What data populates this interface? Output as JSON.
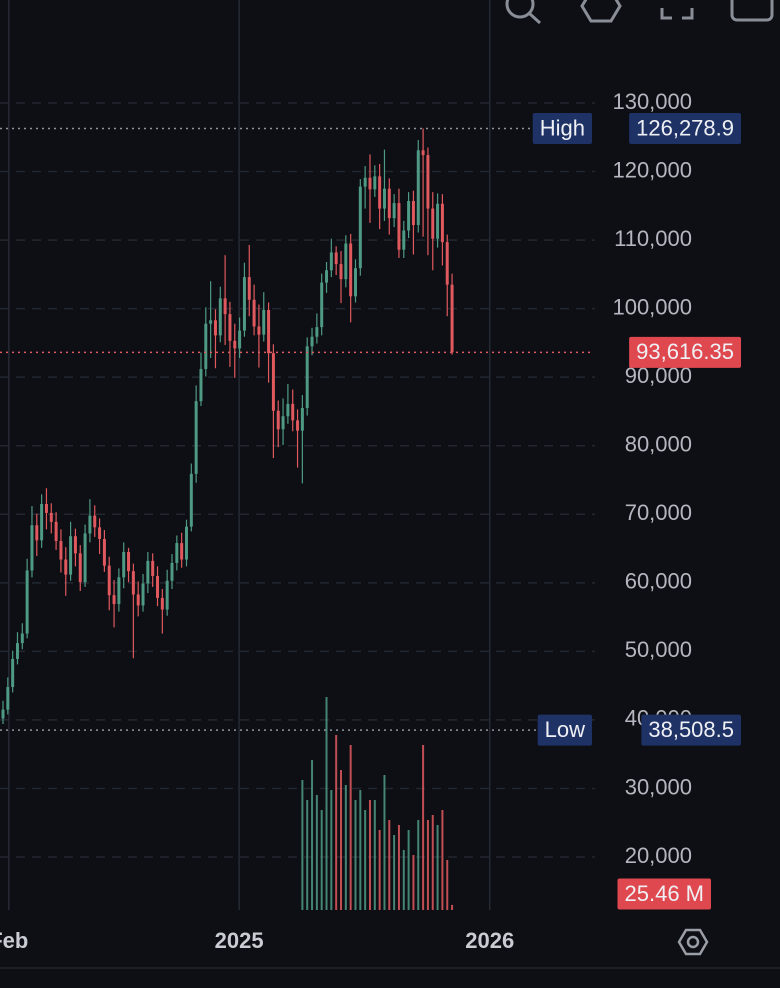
{
  "chart_data": {
    "type": "candlestick",
    "up_color": "#4f9a84",
    "down_color": "#e0595e",
    "xlim": [
      -0.62,
      122.6
    ],
    "xticks": [
      {
        "value": 1.2,
        "label": "Feb"
      },
      {
        "value": 48.9,
        "label": "2025"
      },
      {
        "value": 100.8,
        "label": "2026"
      }
    ],
    "ylim": [
      12267,
      145027
    ],
    "yticks": [
      {
        "value": 130000,
        "label": "130,000"
      },
      {
        "value": 120000,
        "label": "120,000"
      },
      {
        "value": 110000,
        "label": "110,000"
      },
      {
        "value": 100000,
        "label": "100,000"
      },
      {
        "value": 90000,
        "label": "90,000"
      },
      {
        "value": 80000,
        "label": "80,000"
      },
      {
        "value": 70000,
        "label": "70,000"
      },
      {
        "value": 60000,
        "label": "60,000"
      },
      {
        "value": 50000,
        "label": "50,000"
      },
      {
        "value": 40000,
        "label": "40,000"
      },
      {
        "value": 30000,
        "label": "30,000"
      },
      {
        "value": 20000,
        "label": "20,000"
      }
    ],
    "grid": true,
    "open": [
      40200,
      41500,
      44800,
      48900,
      51200,
      52600,
      61800,
      68400,
      66200,
      71500,
      70200,
      68900,
      66100,
      63400,
      61200,
      66800,
      64300,
      60100,
      67200,
      69800,
      68100,
      66400,
      62500,
      58200,
      56900,
      60800,
      64500,
      61700,
      58300,
      56700,
      59900,
      63200,
      61000,
      57800,
      56100,
      60300,
      62900,
      65800,
      63400,
      68200,
      75900,
      86500,
      91200,
      97800,
      98300,
      96100,
      101500,
      99200,
      95300,
      94200,
      96800,
      104600,
      101300,
      97400,
      96200,
      99800,
      93500,
      85100,
      82400,
      84300,
      86100,
      83700,
      82200,
      85500,
      94500,
      95900,
      97300,
      103800,
      105600,
      108200,
      106500,
      104300,
      109500,
      101800,
      105900,
      117800,
      119100,
      117400,
      119300,
      114600,
      117500,
      113200,
      115400,
      108600,
      111400,
      115700,
      112200,
      123100,
      122400,
      114600,
      110200,
      115300,
      109700,
      103500
    ],
    "high": [
      42800,
      46200,
      50100,
      52800,
      54100,
      63500,
      71200,
      70100,
      72900,
      73800,
      71600,
      70300,
      67800,
      65200,
      68900,
      67900,
      65500,
      68500,
      72200,
      71300,
      69400,
      67700,
      63800,
      60400,
      62100,
      65900,
      65100,
      62800,
      60200,
      61300,
      64500,
      64300,
      62400,
      59100,
      61900,
      64200,
      66900,
      67300,
      69200,
      77400,
      88800,
      93600,
      100200,
      104000,
      99900,
      103200,
      107800,
      101000,
      97800,
      98700,
      106700,
      109300,
      103500,
      100600,
      102400,
      100900,
      94800,
      86600,
      86900,
      89000,
      88200,
      85300,
      87400,
      95800,
      97200,
      99300,
      105100,
      106800,
      110200,
      109100,
      108400,
      110700,
      110900,
      107200,
      118900,
      120800,
      122500,
      120900,
      121100,
      123200,
      119000,
      116700,
      117500,
      112800,
      117000,
      117200,
      124600,
      126278.9,
      123500,
      117000,
      116800,
      116700,
      110800,
      105100
    ],
    "low": [
      39400,
      40800,
      44000,
      48100,
      50300,
      51900,
      60800,
      63900,
      65100,
      67800,
      67200,
      64800,
      61500,
      58100,
      60300,
      62400,
      58800,
      59400,
      65900,
      66700,
      64200,
      61600,
      56000,
      53500,
      55800,
      59200,
      60100,
      49000,
      55100,
      55800,
      58500,
      59400,
      56600,
      52600,
      55200,
      59100,
      61800,
      62200,
      62400,
      67500,
      74600,
      85800,
      90100,
      92800,
      91300,
      95100,
      94700,
      91500,
      89900,
      92800,
      95900,
      98900,
      96100,
      91400,
      95200,
      89200,
      78200,
      79800,
      80100,
      83200,
      82100,
      76800,
      74500,
      84400,
      93200,
      94900,
      96100,
      102300,
      104600,
      104900,
      100800,
      103100,
      98000,
      100900,
      104800,
      114600,
      112500,
      116300,
      111600,
      112800,
      110800,
      111900,
      107400,
      107400,
      110300,
      107900,
      111100,
      110500,
      107800,
      105600,
      108900,
      106300,
      98900,
      93300
    ],
    "close": [
      41500,
      44800,
      48900,
      51200,
      52600,
      61800,
      68400,
      66200,
      71500,
      70200,
      68900,
      66100,
      63400,
      61200,
      66800,
      64300,
      60100,
      67200,
      69800,
      68100,
      66400,
      62500,
      58200,
      56900,
      60800,
      64500,
      61700,
      58300,
      56700,
      59900,
      63200,
      61000,
      57800,
      56100,
      60300,
      62900,
      65800,
      63400,
      68200,
      75900,
      86500,
      91200,
      97800,
      98300,
      96100,
      101500,
      99200,
      95300,
      94200,
      96800,
      104600,
      101300,
      97400,
      96200,
      99800,
      93500,
      85100,
      82400,
      84300,
      86100,
      83700,
      82200,
      85500,
      94500,
      95900,
      97300,
      103800,
      105600,
      108200,
      106500,
      104300,
      109500,
      101800,
      105900,
      117800,
      119100,
      117400,
      119300,
      114600,
      117500,
      113200,
      115400,
      108600,
      111400,
      115700,
      112200,
      123100,
      122400,
      114600,
      110200,
      115300,
      109700,
      103500,
      93616.35
    ],
    "volume": {
      "ylim": [
        0,
        1500
      ],
      "values": [
        null,
        null,
        null,
        null,
        null,
        null,
        null,
        null,
        null,
        null,
        null,
        null,
        null,
        null,
        null,
        null,
        null,
        null,
        null,
        null,
        null,
        null,
        null,
        null,
        null,
        null,
        null,
        null,
        null,
        null,
        null,
        null,
        null,
        null,
        null,
        null,
        null,
        null,
        null,
        null,
        null,
        null,
        null,
        null,
        null,
        null,
        null,
        null,
        null,
        null,
        null,
        null,
        null,
        null,
        null,
        null,
        null,
        null,
        null,
        null,
        null,
        null,
        650,
        550,
        750,
        575,
        500,
        1065,
        600,
        875,
        700,
        625,
        825,
        550,
        600,
        500,
        550,
        550,
        400,
        675,
        450,
        375,
        425,
        300,
        400,
        275,
        450,
        825,
        450,
        475,
        425,
        500,
        250,
        25.46
      ],
      "last_label": "25.46 M"
    },
    "high_line": {
      "label": "High",
      "value": 126278.9,
      "value_label": "126,278.9"
    },
    "low_line": {
      "label": "Low",
      "value": 38508.5,
      "value_label": "38,508.5"
    },
    "last_price": {
      "value": 93616.35,
      "value_label": "93,616.35"
    }
  }
}
